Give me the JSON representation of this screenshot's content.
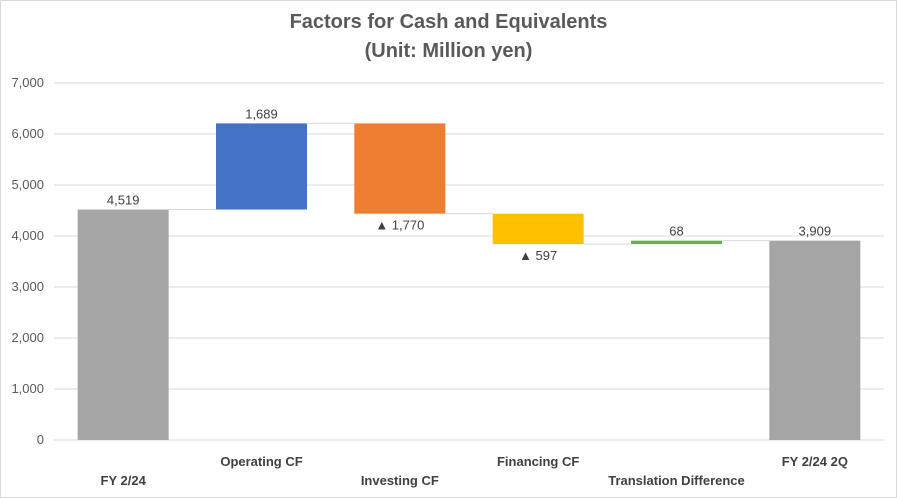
{
  "chart_data": {
    "type": "bar",
    "subtype": "waterfall",
    "title_lines": [
      "Factors for Cash and Equivalents",
      "(Unit: Million yen)"
    ],
    "categories": [
      "FY 2/24",
      "Operating CF",
      "Investing CF",
      "Financing CF",
      "Translation Difference",
      "FY 2/24 2Q"
    ],
    "steps": [
      {
        "kind": "total",
        "value": 4519,
        "label": "4,519",
        "color": "#a5a5a5"
      },
      {
        "kind": "delta",
        "value": 1689,
        "label": "1,689",
        "color": "#4472c4"
      },
      {
        "kind": "delta",
        "value": -1770,
        "label": "▲ 1,770",
        "color": "#ed7d31"
      },
      {
        "kind": "delta",
        "value": -597,
        "label": "▲ 597",
        "color": "#ffc000"
      },
      {
        "kind": "delta",
        "value": 68,
        "label": "68",
        "color": "#70ad47"
      },
      {
        "kind": "total",
        "value": 3909,
        "label": "3,909",
        "color": "#a5a5a5"
      }
    ],
    "ylim": [
      0,
      7000
    ],
    "yticks": [
      0,
      1000,
      2000,
      3000,
      4000,
      5000,
      6000,
      7000
    ],
    "ytick_labels": [
      "0",
      "1,000",
      "2,000",
      "3,000",
      "4,000",
      "5,000",
      "6,000",
      "7,000"
    ],
    "grid": true,
    "legend": "none",
    "connector_color": "#d9d9d9",
    "grid_color": "#d9d9d9"
  }
}
